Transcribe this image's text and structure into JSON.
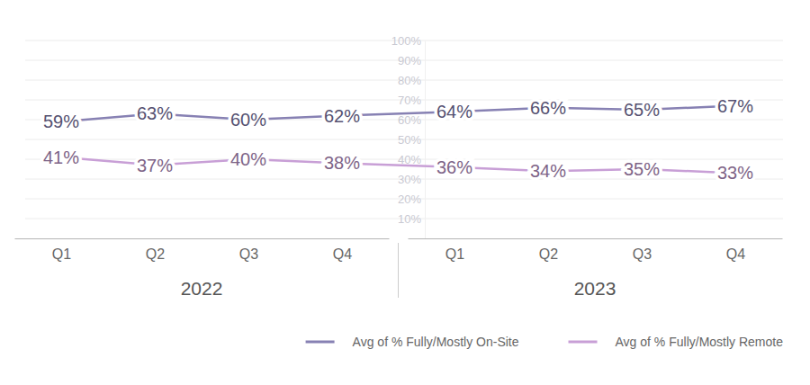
{
  "chart_data": {
    "type": "line",
    "categories": [
      "Q1",
      "Q2",
      "Q3",
      "Q4",
      "Q1",
      "Q2",
      "Q3",
      "Q4"
    ],
    "category_groups": [
      "2022",
      "2023"
    ],
    "series": [
      {
        "name": "Avg of % Fully/Mostly On-Site",
        "color": "#8781b3",
        "values": [
          59,
          63,
          60,
          62,
          64,
          66,
          65,
          67
        ],
        "value_labels": [
          "59%",
          "63%",
          "60%",
          "62%",
          "64%",
          "66%",
          "65%",
          "67%"
        ]
      },
      {
        "name": "Avg of % Fully/Mostly Remote",
        "color": "#c89fd6",
        "values": [
          41,
          37,
          40,
          38,
          36,
          34,
          35,
          33
        ],
        "value_labels": [
          "41%",
          "37%",
          "40%",
          "38%",
          "36%",
          "34%",
          "35%",
          "33%"
        ]
      }
    ],
    "ylim": [
      0,
      100
    ],
    "yticks": [
      {
        "value": 10,
        "label": "10%"
      },
      {
        "value": 20,
        "label": "20%"
      },
      {
        "value": 30,
        "label": "30%"
      },
      {
        "value": 40,
        "label": "40%"
      },
      {
        "value": 50,
        "label": "50%"
      },
      {
        "value": 60,
        "label": "60%"
      },
      {
        "value": 70,
        "label": "70%"
      },
      {
        "value": 80,
        "label": "80%"
      },
      {
        "value": 90,
        "label": "90%"
      },
      {
        "value": 100,
        "label": "100%"
      }
    ],
    "grid": true,
    "data_labels": true,
    "legend": "bottom-right"
  }
}
